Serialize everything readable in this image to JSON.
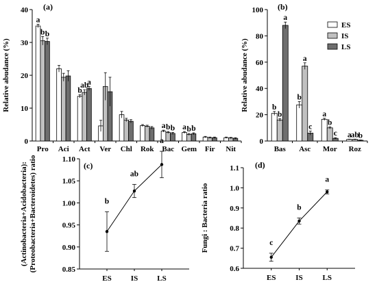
{
  "series_colors": [
    "#ffffff",
    "#c0c0c0",
    "#6e6e6e"
  ],
  "chart_data": [
    {
      "panel": "(a)",
      "type": "bar",
      "ylabel": "Relative abudance (%)",
      "ylim": [
        0,
        40
      ],
      "yticks": [
        0,
        10,
        20,
        30,
        40
      ],
      "categories": [
        "Pro",
        "Aci",
        "Act",
        "Ver",
        "Chl",
        "Rok",
        "Bac",
        "Gem",
        "Fir",
        "Nit"
      ],
      "series": [
        {
          "values": [
            35.0,
            22.0,
            13.6,
            4.6,
            8.0,
            4.7,
            3.0,
            2.6,
            1.2,
            1.0
          ],
          "errors": [
            0.5,
            1.0,
            0.5,
            1.7,
            1.0,
            0.3,
            0.3,
            0.3,
            0.2,
            0.2
          ]
        },
        {
          "values": [
            30.5,
            19.4,
            14.8,
            16.6,
            6.4,
            4.5,
            2.6,
            2.0,
            1.0,
            0.9
          ],
          "errors": [
            1.3,
            1.2,
            0.8,
            4.2,
            0.5,
            0.3,
            0.3,
            0.3,
            0.2,
            0.2
          ]
        },
        {
          "values": [
            30.3,
            19.8,
            16.0,
            15.0,
            6.0,
            4.0,
            2.3,
            2.2,
            1.0,
            0.8
          ],
          "errors": [
            1.0,
            1.6,
            0.6,
            4.4,
            0.5,
            0.4,
            0.3,
            0.3,
            0.2,
            0.2
          ]
        }
      ],
      "significance": [
        [
          "a",
          "b",
          "b"
        ],
        [],
        [
          "b",
          "ab",
          "a"
        ],
        [],
        [],
        [],
        [
          "a",
          "b",
          "b"
        ],
        [
          "a",
          "b",
          "b"
        ],
        [],
        []
      ]
    },
    {
      "panel": "(b)",
      "type": "bar",
      "ylabel": "Relative abudance (%)",
      "ylim": [
        0,
        100
      ],
      "yticks": [
        0,
        20,
        40,
        60,
        80,
        100
      ],
      "categories": [
        "Bas",
        "Asc",
        "Mor",
        "Roz"
      ],
      "legend": [
        "ES",
        "IS",
        "LS"
      ],
      "series": [
        {
          "values": [
            21.0,
            27.5,
            16.5,
            1.2
          ],
          "errors": [
            1.5,
            2.5,
            0.8,
            0.2
          ]
        },
        {
          "values": [
            16.0,
            57.0,
            10.0,
            1.2
          ],
          "errors": [
            1.0,
            2.5,
            0.8,
            0.2
          ]
        },
        {
          "values": [
            88.0,
            6.0,
            2.0,
            0.6
          ],
          "errors": [
            2.5,
            1.5,
            0.5,
            0.2
          ]
        }
      ],
      "significance": [
        [
          "b",
          "b",
          "a"
        ],
        [
          "b",
          "a",
          "c"
        ],
        [
          "a",
          "b",
          "c"
        ],
        [
          "a",
          "ab",
          "b"
        ]
      ]
    },
    {
      "panel": "(c)",
      "type": "line",
      "ylabel_lines": [
        "(Actinobacteria+Acidobacteria):",
        "(Proteobacteria+Bacteroidetes) ratio"
      ],
      "ylim": [
        0.85,
        1.1
      ],
      "yticks": [
        0.85,
        0.9,
        0.95,
        1.0,
        1.05,
        1.1
      ],
      "categories": [
        "ES",
        "IS",
        "LS"
      ],
      "values": [
        0.935,
        1.027,
        1.087
      ],
      "errors": [
        0.045,
        0.015,
        0.03
      ],
      "significance": [
        "b",
        "ab",
        "a"
      ]
    },
    {
      "panel": "(d)",
      "type": "line",
      "ylabel": "Fungi : Bacteria ratio",
      "ylim": [
        0.6,
        1.1
      ],
      "yticks": [
        0.6,
        0.7,
        0.8,
        0.9,
        1.0,
        1.1
      ],
      "categories": [
        "ES",
        "IS",
        "LS"
      ],
      "values": [
        0.655,
        0.835,
        0.98
      ],
      "errors": [
        0.02,
        0.015,
        0.01
      ],
      "significance": [
        "c",
        "b",
        "a"
      ]
    }
  ]
}
